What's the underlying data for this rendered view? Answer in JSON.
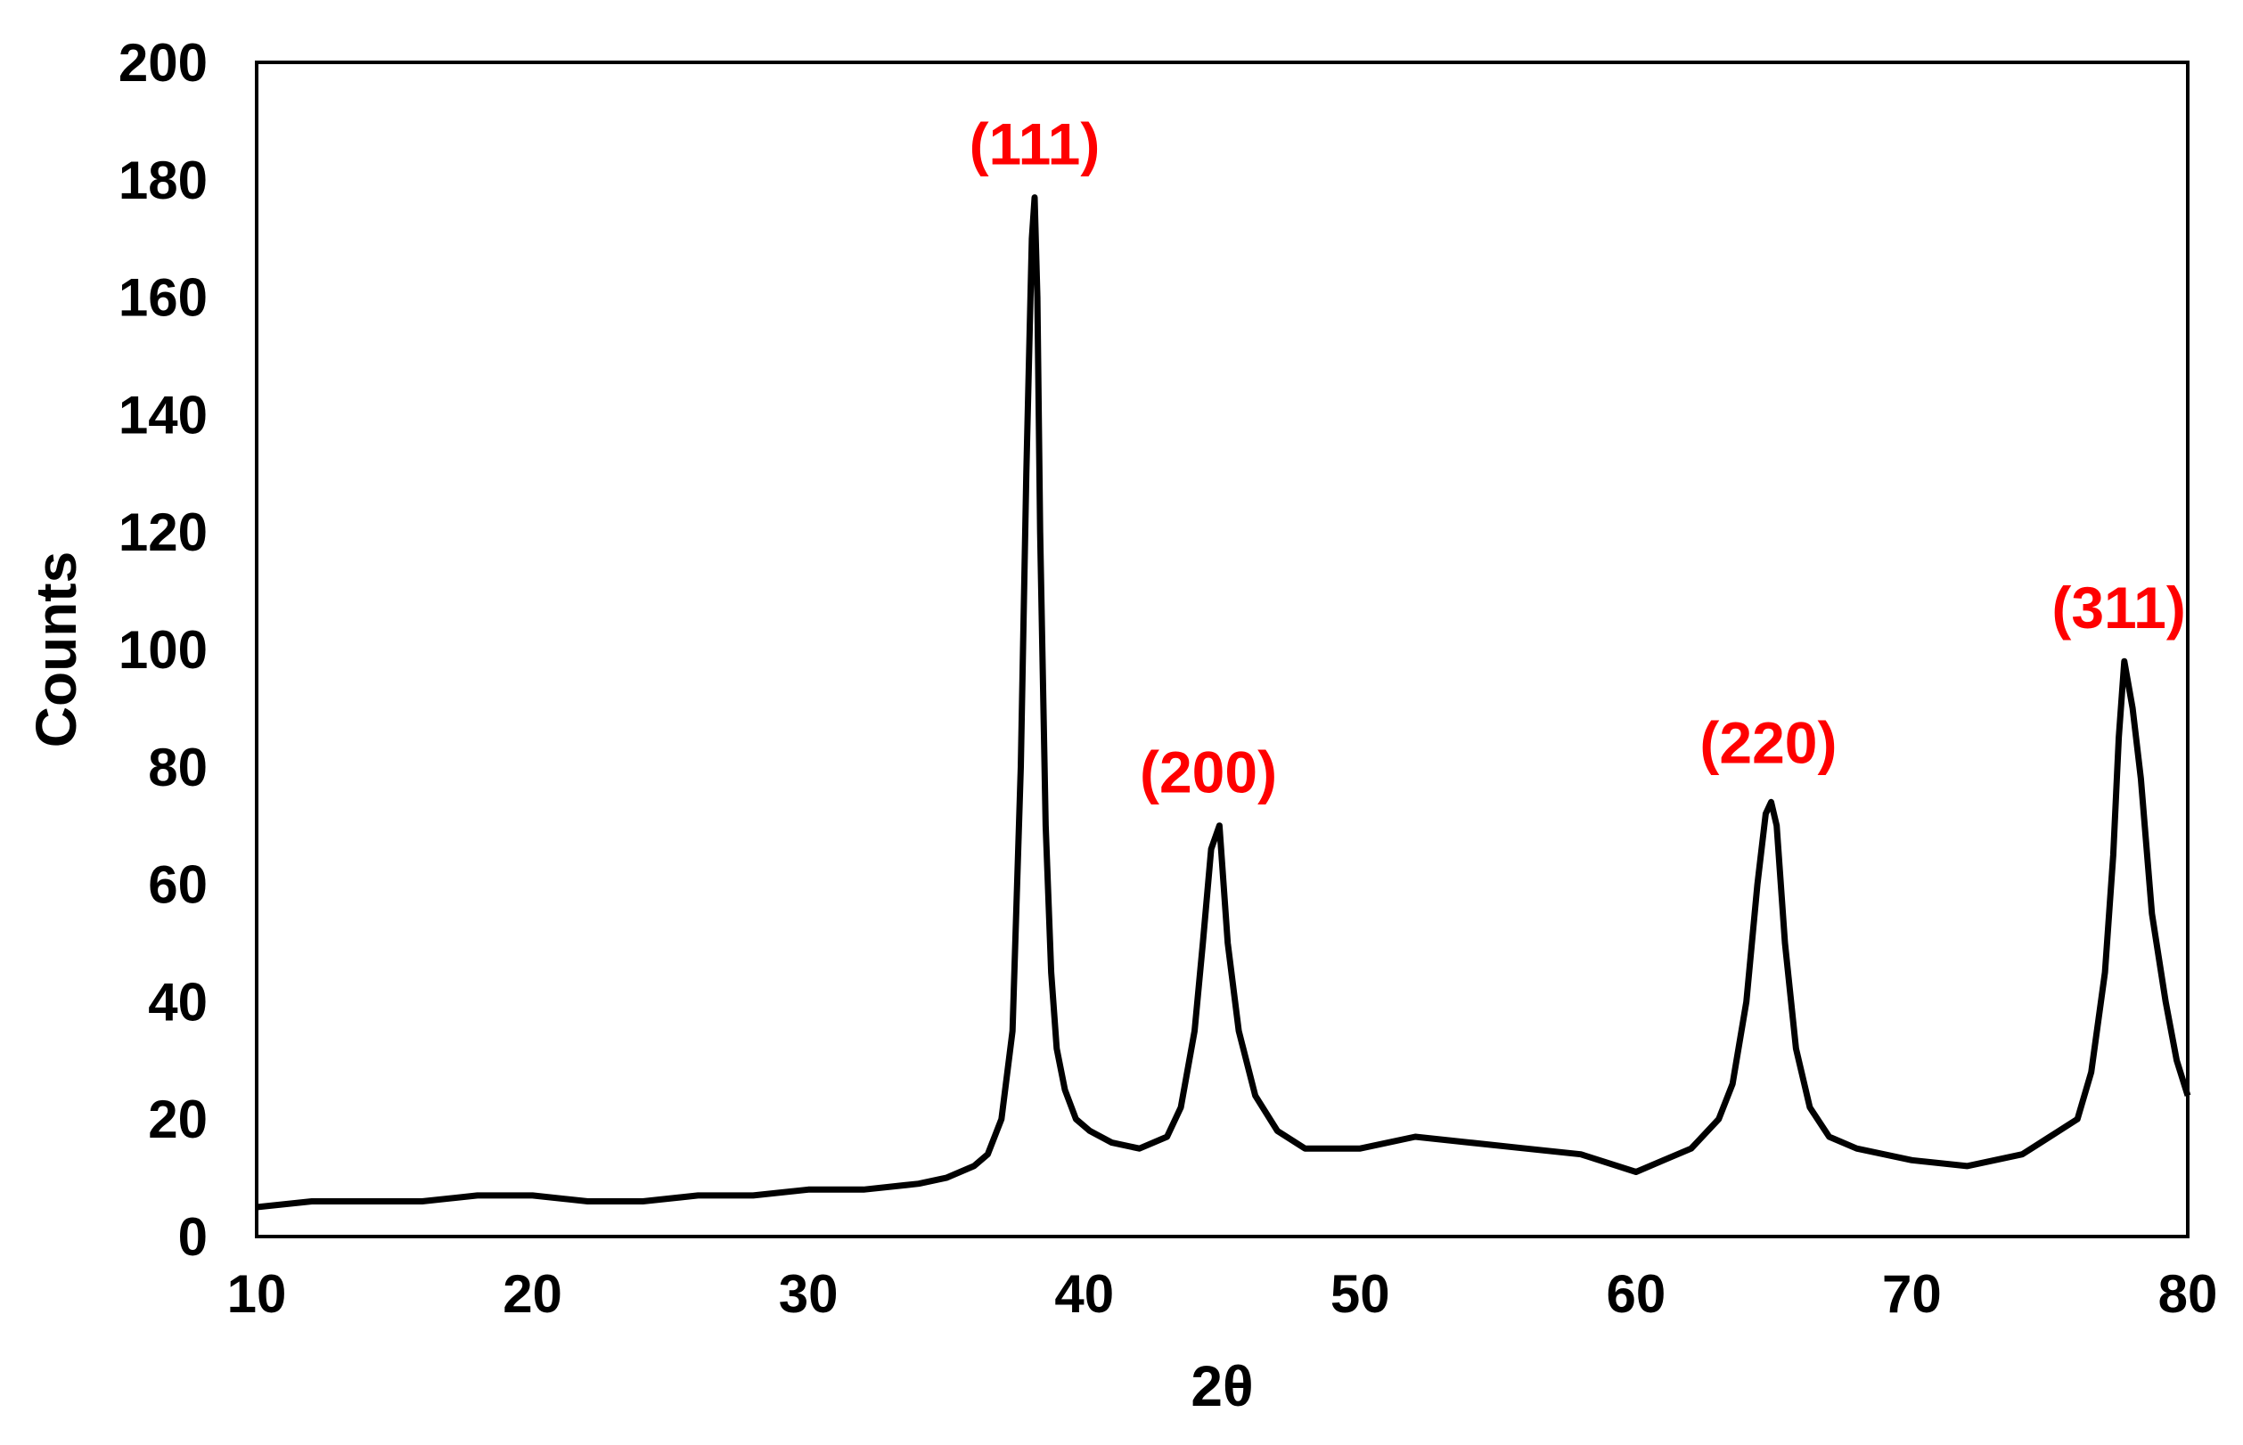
{
  "chart_data": {
    "type": "line",
    "title": "",
    "xlabel": "2θ",
    "ylabel": "Counts",
    "xlim": [
      10,
      80
    ],
    "ylim": [
      0,
      200
    ],
    "x_ticks": [
      "10",
      "20",
      "30",
      "40",
      "50",
      "60",
      "70",
      "80"
    ],
    "y_ticks": [
      "0",
      "20",
      "40",
      "60",
      "80",
      "100",
      "120",
      "140",
      "160",
      "180",
      "200"
    ],
    "grid": false,
    "legend": "none",
    "colors": {
      "line": "#000000",
      "annotation": "#ff0000",
      "frame": "#000000"
    },
    "series": [
      {
        "x": [
          10,
          12,
          14,
          16,
          18,
          20,
          22,
          24,
          26,
          28,
          30,
          32,
          34,
          35,
          36,
          36.5,
          37,
          37.4,
          37.7,
          37.9,
          38.1,
          38.2,
          38.3,
          38.4,
          38.6,
          38.8,
          39,
          39.3,
          39.7,
          40.2,
          41,
          42,
          43,
          43.5,
          44,
          44.3,
          44.6,
          44.9,
          45.2,
          45.6,
          46.2,
          47,
          48,
          50,
          52,
          54,
          56,
          58,
          60,
          61,
          62,
          63,
          63.5,
          64,
          64.4,
          64.7,
          64.9,
          65.1,
          65.4,
          65.8,
          66.3,
          67,
          68,
          70,
          72,
          74,
          75,
          76,
          76.5,
          77,
          77.3,
          77.5,
          77.7,
          78,
          78.3,
          78.7,
          79.2,
          79.6,
          80
        ],
        "y": [
          5,
          6,
          6,
          6,
          7,
          7,
          6,
          6,
          7,
          7,
          8,
          8,
          9,
          10,
          12,
          14,
          20,
          35,
          80,
          130,
          170,
          177,
          160,
          120,
          70,
          45,
          32,
          25,
          20,
          18,
          16,
          15,
          17,
          22,
          35,
          50,
          66,
          70,
          50,
          35,
          24,
          18,
          15,
          15,
          17,
          16,
          15,
          14,
          11,
          13,
          15,
          20,
          26,
          40,
          60,
          72,
          74,
          70,
          50,
          32,
          22,
          17,
          15,
          13,
          12,
          14,
          17,
          20,
          28,
          45,
          65,
          85,
          98,
          90,
          78,
          55,
          40,
          30,
          24
        ]
      }
    ],
    "annotations": [
      {
        "text": "(111)",
        "x": 38.2,
        "y": 186
      },
      {
        "text": "(200)",
        "x": 44.5,
        "y": 79
      },
      {
        "text": "(220)",
        "x": 64.8,
        "y": 84
      },
      {
        "text": "(311)",
        "x": 77.5,
        "y": 107
      }
    ]
  }
}
